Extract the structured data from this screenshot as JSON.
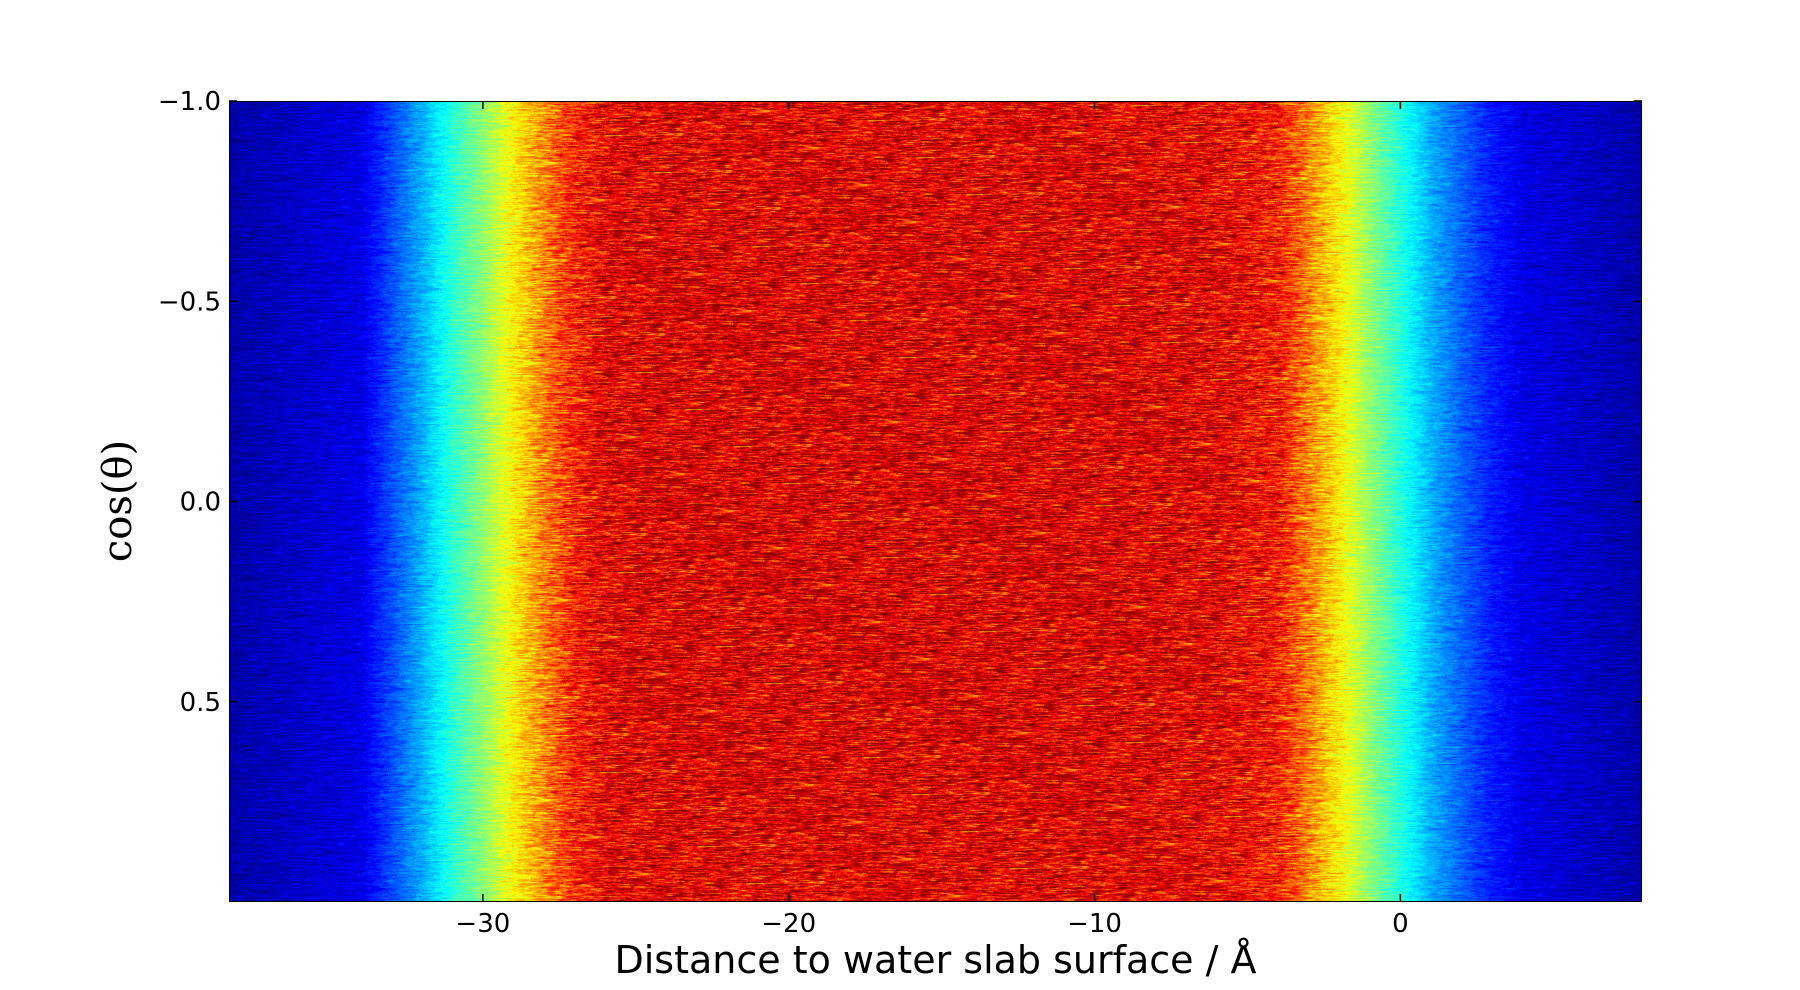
{
  "chart_data": {
    "type": "heatmap",
    "title": "",
    "xlabel": "Distance to water slab surface / Å",
    "ylabel": "cos(θ)",
    "xlim": [
      -38.3,
      7.9
    ],
    "ylim": [
      -1.0,
      1.0
    ],
    "y_inverted": true,
    "grid": false,
    "colormap": "jet",
    "x_ticks": [
      -30,
      -20,
      -10,
      0
    ],
    "x_tick_labels": [
      "−30",
      "−20",
      "−10",
      "0"
    ],
    "y_ticks": [
      -1.0,
      -0.5,
      0.0,
      0.5
    ],
    "y_tick_labels": [
      "−1.0",
      "−0.5",
      "0.0",
      "0.5"
    ],
    "profile_x": [
      -38.3,
      -34,
      -32,
      -31,
      -30,
      -29,
      -28,
      -27,
      -26,
      -24,
      -20,
      -15,
      -10,
      -6,
      -4,
      -3,
      -2,
      -1,
      0,
      1,
      2,
      3,
      4,
      7.9
    ],
    "profile_value": [
      0.04,
      0.1,
      0.3,
      0.42,
      0.52,
      0.64,
      0.75,
      0.85,
      0.9,
      0.91,
      0.91,
      0.91,
      0.91,
      0.9,
      0.86,
      0.75,
      0.64,
      0.52,
      0.41,
      0.3,
      0.22,
      0.15,
      0.1,
      0.04
    ]
  }
}
